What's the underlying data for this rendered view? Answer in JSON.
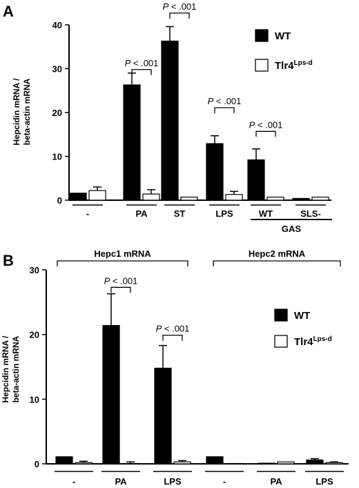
{
  "chart_data": [
    {
      "panel": "A",
      "type": "bar",
      "ylabel_lines": [
        "Hepcidin mRNA /",
        "beta-actin mRNA"
      ],
      "ylim": [
        0,
        40
      ],
      "yticks": [
        0,
        10,
        20,
        30,
        40
      ],
      "categories": [
        "-",
        "PA",
        "ST",
        "LPS",
        "WT",
        "SLS-"
      ],
      "group_label": "GAS",
      "series": [
        {
          "name": "WT",
          "fill": "#000000",
          "values": [
            1.6,
            26.3,
            36.3,
            12.9,
            9.2,
            0.4
          ],
          "errors": [
            0.0,
            2.7,
            3.3,
            1.8,
            2.5,
            0.0
          ]
        },
        {
          "name": "Tlr4",
          "name_sup": "Lps-d",
          "fill": "#ffffff",
          "values": [
            2.2,
            1.4,
            0.7,
            1.3,
            0.7,
            0.7
          ],
          "errors": [
            0.8,
            1.0,
            0.0,
            0.7,
            0.0,
            0.0
          ]
        }
      ],
      "annotations": [
        {
          "text": "P < .001",
          "category": "PA",
          "y": 29.8
        },
        {
          "text": "P < .001",
          "category": "ST",
          "y": 42.7
        },
        {
          "text": "P < .001",
          "category": "LPS",
          "y": 21.1
        },
        {
          "text": "P < .001",
          "category": "WT",
          "y": 15.7
        }
      ],
      "legend": "right"
    },
    {
      "panel": "B",
      "type": "bar",
      "ylabel_lines": [
        "Hepcidin mRNA /",
        "beta-actin mRNA"
      ],
      "ylim": [
        0,
        30
      ],
      "yticks": [
        0,
        10,
        20,
        30
      ],
      "categories": [
        "-",
        "PA",
        "LPS",
        "-",
        "PA",
        "LPS"
      ],
      "groups": [
        {
          "label": "Hepc1 mRNA",
          "from": 0,
          "to": 2
        },
        {
          "label": "Hepc2 mRNA",
          "from": 3,
          "to": 5
        }
      ],
      "series": [
        {
          "name": "WT",
          "fill": "#000000",
          "values": [
            1.1,
            21.4,
            14.8,
            1.1,
            0.1,
            0.6
          ],
          "errors": [
            0.0,
            4.9,
            3.5,
            0.0,
            0.0,
            0.2
          ]
        },
        {
          "name": "Tlr4",
          "name_sup": "Lps-d",
          "fill": "#ffffff",
          "values": [
            0.2,
            0.0,
            0.3,
            0.0,
            0.3,
            0.2
          ],
          "errors": [
            0.2,
            0.3,
            0.2,
            0.0,
            0.0,
            0.1
          ]
        }
      ],
      "annotations": [
        {
          "text": "P < .001",
          "category_index": 1,
          "y": 27.3
        },
        {
          "text": "P < .001",
          "category_index": 2,
          "y": 19.9
        }
      ],
      "legend": "right"
    }
  ]
}
